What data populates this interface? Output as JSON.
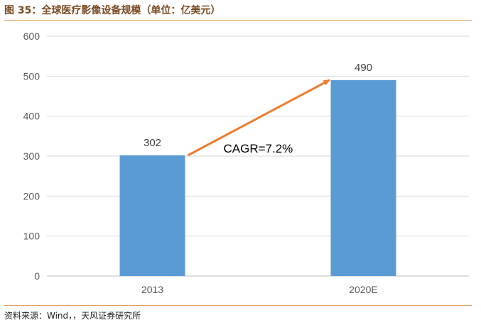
{
  "header": {
    "title": "图 35：全球医疗影像设备规模（单位：亿美元）"
  },
  "footer": {
    "source": "资料来源：Wind，，天风证券研究所"
  },
  "colors": {
    "bar": "#5b9bd5",
    "arrow": "#ed7d31",
    "gridline": "#d9d9d9",
    "rule": "#e0a060"
  },
  "chart_data": {
    "type": "bar",
    "title": "",
    "xlabel": "",
    "ylabel": "",
    "categories": [
      "2013",
      "2020E"
    ],
    "series": [
      {
        "values": [
          302,
          490
        ]
      }
    ],
    "data_labels": [
      "302",
      "490"
    ],
    "ylim": [
      0,
      600
    ],
    "yticks": [
      0,
      100,
      200,
      300,
      400,
      500,
      600
    ],
    "grid": true,
    "legend": "none",
    "annotations": [
      {
        "text": "CAGR=7.2%",
        "type": "arrow",
        "from_category": "2013",
        "to_category": "2020E"
      }
    ]
  }
}
